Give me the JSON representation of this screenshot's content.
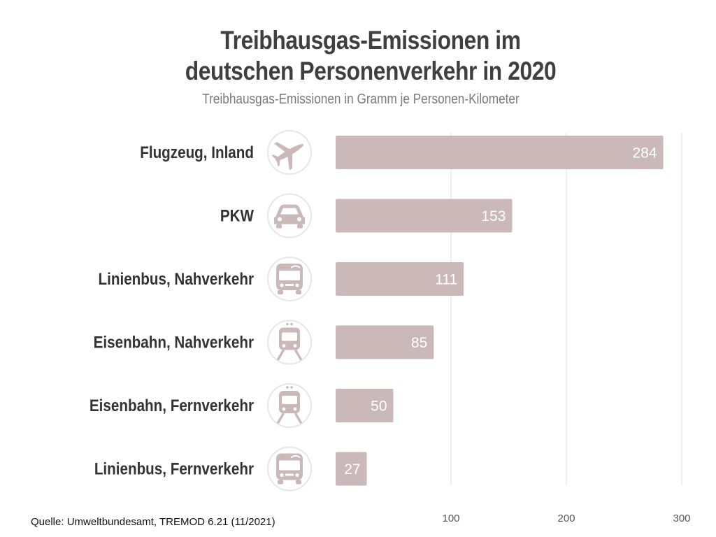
{
  "header": {
    "title_line1": "Treibhausgas-Emissionen im",
    "title_line2": "deutschen Personenverkehr in 2020",
    "subtitle": "Treibhausgas-Emissionen in Gramm je Personen-Kilometer"
  },
  "footer": {
    "source": "Quelle: Umweltbundesamt, TREMOD 6.21 (11/2021)"
  },
  "colors": {
    "bar": "#cbb8b8",
    "gridline": "#dddddd",
    "icon": "#cbb8b8",
    "icon_circle": "#e6e6e6"
  },
  "chart_data": {
    "type": "bar",
    "orientation": "horizontal",
    "title": "Treibhausgas-Emissionen im deutschen Personenverkehr in 2020",
    "subtitle": "Treibhausgas-Emissionen in Gramm je Personen-Kilometer",
    "xlabel": "",
    "ylabel": "",
    "categories": [
      "Flugzeug, Inland",
      "PKW",
      "Linienbus, Nahverkehr",
      "Eisenbahn, Nahverkehr",
      "Eisenbahn, Fernverkehr",
      "Linienbus, Fernverkehr"
    ],
    "icons": [
      "plane-icon",
      "car-icon",
      "bus-icon",
      "train-icon",
      "train-icon",
      "bus-icon"
    ],
    "values": [
      284,
      153,
      111,
      85,
      50,
      27
    ],
    "xlim": [
      0,
      300
    ],
    "xticks": [
      100,
      200,
      300
    ],
    "grid": true,
    "legend": "none"
  }
}
